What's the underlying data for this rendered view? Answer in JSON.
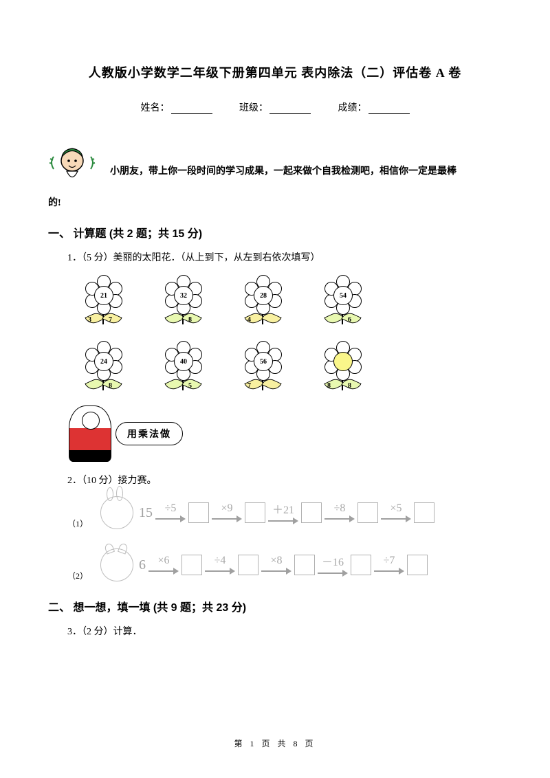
{
  "title": "人教版小学数学二年级下册第四单元  表内除法（二）评估卷 A 卷",
  "info": {
    "name": "姓名：",
    "class": "班级：",
    "score": "成绩："
  },
  "intro": {
    "line": "小朋友，带上你一段时间的学习成果，一起来做个自我检测吧，相信你一定是最棒",
    "tail": "的!"
  },
  "sec1": {
    "head": "一、 计算题 (共 2 题；共 15 分)",
    "q1": "1．（5 分）美丽的太阳花．（从上到下，从左到右依次填写）",
    "q2": "2．（10 分）接力赛。",
    "bubble": "用乘法做"
  },
  "sec2": {
    "head": "二、 想一想，填一填 (共 9 题；共 23 分)",
    "q3": "3．（2 分）计算．"
  },
  "flowers": {
    "row1": [
      {
        "c": "21",
        "l": "3",
        "r": "7",
        "leafFill": "#f8f0a0"
      },
      {
        "c": "32",
        "l": "",
        "r": "8",
        "leafFill": "#e8f8b0"
      },
      {
        "c": "28",
        "l": "4",
        "r": "",
        "leafFill": "#f8f0a0"
      },
      {
        "c": "54",
        "l": "",
        "r": "6",
        "leafFill": "#e8f8b0"
      }
    ],
    "row2": [
      {
        "c": "24",
        "l": "",
        "r": "8",
        "leafFill": "#e8f8b0",
        "centerFill": "#fff"
      },
      {
        "c": "40",
        "l": "",
        "r": "5",
        "leafFill": "#e8f8b0",
        "centerFill": "#fff"
      },
      {
        "c": "56",
        "l": "7",
        "r": "",
        "leafFill": "#f8f0a0",
        "centerFill": "#fff"
      },
      {
        "c": "",
        "l": "8",
        "r": "8",
        "leafFill": "#e8f8b0",
        "centerFill": "#faf68a"
      }
    ]
  },
  "relay1": {
    "label": "（1）",
    "start": "15",
    "ops": [
      "÷5",
      "×9",
      "＋21",
      "÷8",
      "×5"
    ]
  },
  "relay2": {
    "label": "（2）",
    "start": "6",
    "ops": [
      "×6",
      "÷4",
      "×8",
      "－16",
      "÷7"
    ]
  },
  "footer": "第 1 页 共 8 页"
}
